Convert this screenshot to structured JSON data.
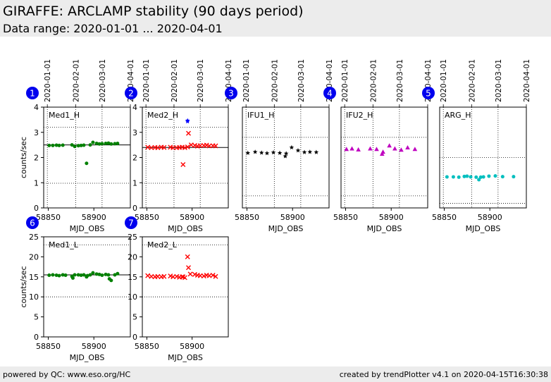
{
  "header": {
    "title": "GIRAFFE: ARCLAMP stability (90 days period)",
    "subtitle": "Data range: 2020-01-01 ... 2020-04-01"
  },
  "footer": {
    "left": "powered by QC: www.eso.org/HC",
    "right": "created by trendPlotter v4.1 on 2020-04-15T16:30:38"
  },
  "chart_data": [
    {
      "type": "scatter",
      "id": "1",
      "label": "Med1_H",
      "color": "#008000",
      "marker": "circle",
      "xlabel": "MJD_OBS",
      "ylabel": "counts/sec",
      "xlim": [
        58845,
        58940
      ],
      "ylim": [
        0,
        4
      ],
      "xticks": [
        58850,
        58900
      ],
      "yticks": [
        0,
        1,
        2,
        3,
        4
      ],
      "date_labels": [
        "2020-01-01",
        "2020-02-01",
        "2020-03-01",
        "2020-04-01"
      ],
      "date_mjd": [
        58849,
        58880,
        58909,
        58940
      ],
      "ref_lines": [
        0.98,
        2.5,
        3.2
      ],
      "ref_styles": [
        "dot",
        "solid",
        "dot"
      ],
      "x": [
        58851,
        58855,
        58859,
        58862,
        58866,
        58876,
        58879,
        58883,
        58886,
        58889,
        58892,
        58896,
        58899,
        58903,
        58906,
        58909,
        58913,
        58916,
        58919,
        58923,
        58926
      ],
      "y": [
        2.48,
        2.48,
        2.49,
        2.48,
        2.49,
        2.5,
        2.44,
        2.47,
        2.48,
        2.49,
        1.77,
        2.5,
        2.6,
        2.56,
        2.54,
        2.55,
        2.56,
        2.57,
        2.54,
        2.55,
        2.56
      ]
    },
    {
      "type": "scatter",
      "id": "2",
      "label": "Med2_H",
      "color": "#ff0000",
      "marker": "x",
      "xlabel": "MJD_OBS",
      "ylabel": "",
      "xlim": [
        58845,
        58940
      ],
      "ylim": [
        0,
        4
      ],
      "xticks": [
        58850,
        58900
      ],
      "yticks": [
        0,
        1,
        2,
        3,
        4
      ],
      "date_labels": [
        "2020-01-01",
        "2020-02-01",
        "2020-03-01",
        "2020-04-01"
      ],
      "date_mjd": [
        58849,
        58880,
        58909,
        58940
      ],
      "ref_lines": [
        0.98,
        2.4,
        3.2
      ],
      "ref_styles": [
        "dot",
        "solid",
        "dot"
      ],
      "x": [
        58851,
        58855,
        58859,
        58862,
        58866,
        58869,
        58876,
        58879,
        58883,
        58886,
        58889,
        58890,
        58892,
        58895,
        58896,
        58899,
        58903,
        58906,
        58909,
        58913,
        58916,
        58919,
        58923,
        58926
      ],
      "y": [
        2.41,
        2.39,
        2.4,
        2.39,
        2.41,
        2.4,
        2.41,
        2.39,
        2.39,
        2.4,
        2.41,
        1.72,
        2.39,
        2.42,
        2.96,
        2.5,
        2.48,
        2.45,
        2.47,
        2.48,
        2.49,
        2.46,
        2.47,
        2.46
      ],
      "extra": {
        "color": "#0000ff",
        "marker": "star",
        "x": [
          58895,
          58895
        ],
        "y": [
          3.43,
          3.47
        ]
      }
    },
    {
      "type": "scatter",
      "id": "3",
      "label": "IFU1_H",
      "color": "#000000",
      "marker": "star",
      "xlabel": "MJD_OBS",
      "ylabel": "",
      "xlim": [
        58845,
        58940
      ],
      "ylim": [
        0,
        4
      ],
      "xticks": [
        58850,
        58900
      ],
      "yticks": [],
      "date_labels": [
        "2020-01-01",
        "2020-02-01",
        "2020-03-01",
        "2020-04-01"
      ],
      "date_mjd": [
        58849,
        58880,
        58909,
        58940
      ],
      "ref_lines": [
        0.48,
        2.8
      ],
      "ref_styles": [
        "dot",
        "dot"
      ],
      "x": [
        58851,
        58859,
        58866,
        58872,
        58879,
        58886,
        58892,
        58893,
        58899,
        58906,
        58913,
        58919,
        58926
      ],
      "y": [
        2.18,
        2.22,
        2.19,
        2.17,
        2.2,
        2.18,
        2.05,
        2.16,
        2.4,
        2.28,
        2.21,
        2.22,
        2.21
      ]
    },
    {
      "type": "scatter",
      "id": "4",
      "label": "IFU2_H",
      "color": "#bf00bf",
      "marker": "triangle",
      "xlabel": "MJD_OBS",
      "ylabel": "",
      "xlim": [
        58845,
        58940
      ],
      "ylim": [
        0,
        4
      ],
      "xticks": [
        58850,
        58900
      ],
      "yticks": [],
      "date_labels": [
        "2020-01-01",
        "2020-02-01",
        "2020-03-01",
        "2020-04-01"
      ],
      "date_mjd": [
        58849,
        58880,
        58909,
        58940
      ],
      "ref_lines": [
        0.48,
        2.8
      ],
      "ref_styles": [
        "dot",
        "dot"
      ],
      "x": [
        58851,
        58857,
        58864,
        58877,
        58884,
        58890,
        58891,
        58898,
        58904,
        58911,
        58918,
        58926
      ],
      "y": [
        2.33,
        2.35,
        2.31,
        2.35,
        2.33,
        2.14,
        2.22,
        2.47,
        2.35,
        2.3,
        2.39,
        2.33
      ]
    },
    {
      "type": "scatter",
      "id": "5",
      "label": "ARG_H",
      "color": "#00bfbf",
      "marker": "circle",
      "xlabel": "MJD_OBS",
      "ylabel": "",
      "xlim": [
        58845,
        58940
      ],
      "ylim": [
        0,
        4
      ],
      "xticks": [
        58850,
        58900
      ],
      "yticks": [],
      "date_labels": [
        "2020-01-01",
        "2020-02-01",
        "2020-03-01",
        "2020-04-01"
      ],
      "date_mjd": [
        58849,
        58880,
        58909,
        58940
      ],
      "ref_lines": [
        0.18,
        2.0
      ],
      "ref_styles": [
        "dot",
        "dot"
      ],
      "x": [
        58853,
        58860,
        58866,
        58872,
        58875,
        58879,
        58885,
        58888,
        58890,
        58893,
        58899,
        58906,
        58914,
        58926
      ],
      "y": [
        1.23,
        1.23,
        1.22,
        1.25,
        1.26,
        1.23,
        1.22,
        1.12,
        1.22,
        1.23,
        1.26,
        1.27,
        1.24,
        1.24
      ]
    },
    {
      "type": "scatter",
      "id": "6",
      "label": "Med1_L",
      "color": "#008000",
      "marker": "circle",
      "xlabel": "MJD_OBS",
      "ylabel": "counts/sec",
      "xlim": [
        58845,
        58940
      ],
      "ylim": [
        0,
        25
      ],
      "xticks": [
        58850,
        58900
      ],
      "yticks": [
        0,
        5,
        10,
        15,
        20,
        25
      ],
      "date_labels": [],
      "date_mjd": [],
      "ref_lines": [
        10,
        15.5,
        23
      ],
      "ref_styles": [
        "dot",
        "solid",
        "dot"
      ],
      "x": [
        58851,
        58855,
        58859,
        58862,
        58866,
        58869,
        58876,
        58877,
        58879,
        58883,
        58886,
        58889,
        58892,
        58893,
        58896,
        58899,
        58903,
        58906,
        58909,
        58913,
        58916,
        58917,
        58919,
        58923,
        58926
      ],
      "y": [
        15.4,
        15.5,
        15.4,
        15.3,
        15.5,
        15.4,
        15.1,
        14.7,
        15.5,
        15.5,
        15.4,
        15.5,
        15.0,
        15.3,
        15.5,
        16.0,
        15.7,
        15.6,
        15.4,
        15.6,
        15.5,
        14.5,
        14.1,
        15.5,
        15.8
      ]
    },
    {
      "type": "scatter",
      "id": "7",
      "label": "Med2_L",
      "color": "#ff0000",
      "marker": "x",
      "xlabel": "MJD_OBS",
      "ylabel": "",
      "xlim": [
        58845,
        58940
      ],
      "ylim": [
        0,
        25
      ],
      "xticks": [
        58850,
        58900
      ],
      "yticks": [
        0,
        5,
        10,
        15,
        20,
        25
      ],
      "date_labels": [],
      "date_mjd": [],
      "ref_lines": [
        10,
        23
      ],
      "ref_styles": [
        "dot",
        "dot"
      ],
      "x": [
        58851,
        58855,
        58859,
        58862,
        58866,
        58869,
        58876,
        58879,
        58883,
        58886,
        58889,
        58890,
        58892,
        58895,
        58896,
        58898,
        58903,
        58906,
        58909,
        58913,
        58916,
        58919,
        58923,
        58926
      ],
      "y": [
        15.3,
        15.1,
        15.0,
        15.1,
        15.0,
        15.1,
        15.2,
        15.0,
        15.1,
        14.9,
        15.0,
        15.0,
        14.8,
        20.0,
        17.3,
        15.7,
        15.6,
        15.4,
        15.3,
        15.2,
        15.4,
        15.3,
        15.4,
        15.1
      ]
    }
  ]
}
